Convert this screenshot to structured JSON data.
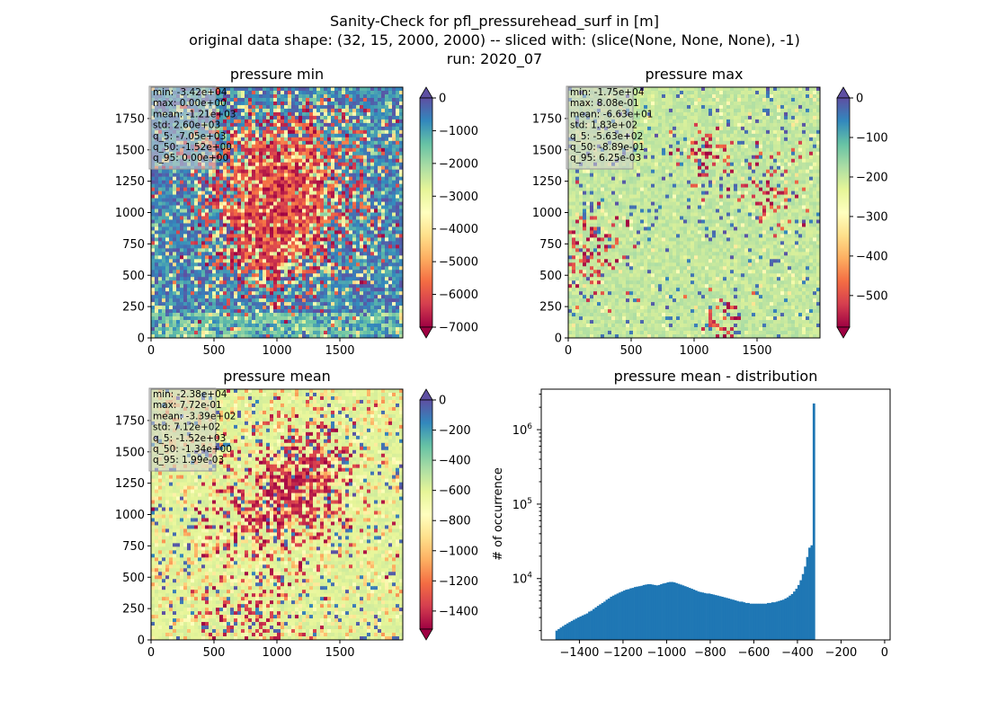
{
  "figure": {
    "title_lines": [
      "Sanity-Check for pfl_pressurehead_surf in [m]",
      "original data shape: (32, 15, 2000, 2000) -- sliced with: (slice(None, None, None), -1)",
      "run: 2020_07"
    ]
  },
  "colors": {
    "bar": "#1f77b4",
    "spectral_stops": [
      "#9e0142",
      "#d53e4f",
      "#f46d43",
      "#fdae61",
      "#fee08b",
      "#ffffbf",
      "#e6f598",
      "#abdda4",
      "#66c2a5",
      "#3288bd",
      "#5e4fa2"
    ]
  },
  "chart_data": [
    {
      "type": "heatmap",
      "title": "pressure min",
      "colormap": "Spectral",
      "x_ticks": [
        0,
        500,
        1000,
        1500
      ],
      "y_ticks": [
        0,
        250,
        500,
        750,
        1000,
        1250,
        1500,
        1750
      ],
      "xlim": [
        0,
        2000
      ],
      "ylim": [
        0,
        2000
      ],
      "colorbar": {
        "vmin": -7000,
        "vmax": 0,
        "ticks": [
          0,
          -1000,
          -2000,
          -3000,
          -4000,
          -5000,
          -6000,
          -7000
        ],
        "extend": "both"
      },
      "stats": [
        "min: -3.42e+04",
        "max: 0.00e+00",
        "mean: -1.21e+03",
        "std: 2.60e+03",
        "q_5: -7.05e+03",
        "q_50: -1.52e+00",
        "q_95: 0.00e+00"
      ],
      "field_mode": "min"
    },
    {
      "type": "heatmap",
      "title": "pressure max",
      "colormap": "Spectral",
      "x_ticks": [
        0,
        500,
        1000,
        1500
      ],
      "y_ticks": [
        0,
        250,
        500,
        750,
        1000,
        1250,
        1500,
        1750
      ],
      "xlim": [
        0,
        2000
      ],
      "ylim": [
        0,
        2000
      ],
      "colorbar": {
        "vmin": -580,
        "vmax": 0,
        "ticks": [
          0,
          -100,
          -200,
          -300,
          -400,
          -500
        ],
        "extend": "both"
      },
      "stats": [
        "min: -1.75e+04",
        "max: 8.08e-01",
        "mean: -6.63e+01",
        "std: 1.83e+02",
        "q_5: -5.63e+02",
        "q_50: -8.89e-01",
        "q_95: 6.25e-03"
      ],
      "field_mode": "max"
    },
    {
      "type": "heatmap",
      "title": "pressure mean",
      "colormap": "Spectral",
      "x_ticks": [
        0,
        500,
        1000,
        1500
      ],
      "y_ticks": [
        0,
        250,
        500,
        750,
        1000,
        1250,
        1500,
        1750
      ],
      "xlim": [
        0,
        2000
      ],
      "ylim": [
        0,
        2000
      ],
      "colorbar": {
        "vmin": -1520,
        "vmax": 0,
        "ticks": [
          0,
          -200,
          -400,
          -600,
          -800,
          -1000,
          -1200,
          -1400
        ],
        "extend": "both"
      },
      "stats": [
        "min: -2.38e+04",
        "max: 7.72e-01",
        "mean: -3.39e+02",
        "std: 7.12e+02",
        "q_5: -1.52e+03",
        "q_50: -1.34e+00",
        "q_95: 1.99e-03"
      ],
      "field_mode": "mean"
    },
    {
      "type": "bar",
      "title": "pressure mean - distribution",
      "ylabel": "# of occurrence",
      "xlabel": "",
      "y_scale": "log",
      "xlim": [
        -1575,
        25
      ],
      "ylim": [
        1500,
        3500000
      ],
      "x_ticks": [
        -1400,
        -1200,
        -1000,
        -800,
        -600,
        -400,
        -200,
        0
      ],
      "x_tick_labels": [
        "−1400",
        "−1200",
        "−1000",
        "−800",
        "−600",
        "−400",
        "−200",
        "0"
      ],
      "y_ticks": [
        10000,
        100000,
        1000000
      ],
      "y_tick_bases": [
        "10",
        "10",
        "10"
      ],
      "y_tick_exps": [
        "4",
        "5",
        "6"
      ],
      "bin_start": -1510,
      "bin_width": 10,
      "values": [
        2000,
        2100,
        2200,
        2300,
        2400,
        2500,
        2600,
        2700,
        2800,
        2900,
        3000,
        3100,
        3200,
        3300,
        3400,
        3600,
        3700,
        3900,
        4100,
        4300,
        4500,
        4700,
        4900,
        5200,
        5400,
        5700,
        5900,
        6100,
        6300,
        6500,
        6700,
        6900,
        7100,
        7200,
        7400,
        7500,
        7700,
        7800,
        7900,
        8000,
        8200,
        8300,
        8400,
        8400,
        8300,
        8200,
        8100,
        8200,
        8400,
        8600,
        8700,
        8900,
        9000,
        9000,
        8900,
        8700,
        8500,
        8300,
        8100,
        7900,
        7700,
        7500,
        7300,
        7100,
        6900,
        6700,
        6600,
        6500,
        6400,
        6300,
        6300,
        6200,
        6100,
        6000,
        5900,
        5800,
        5700,
        5600,
        5500,
        5400,
        5300,
        5200,
        5100,
        5000,
        4900,
        4900,
        4800,
        4700,
        4700,
        4600,
        4600,
        4600,
        4600,
        4600,
        4600,
        4600,
        4600,
        4700,
        4700,
        4800,
        4800,
        4900,
        5000,
        5100,
        5200,
        5400,
        5600,
        5900,
        6200,
        6700,
        7300,
        8200,
        9500,
        11500,
        14500,
        19500,
        26000,
        28000,
        2250000,
        1500
      ]
    }
  ]
}
